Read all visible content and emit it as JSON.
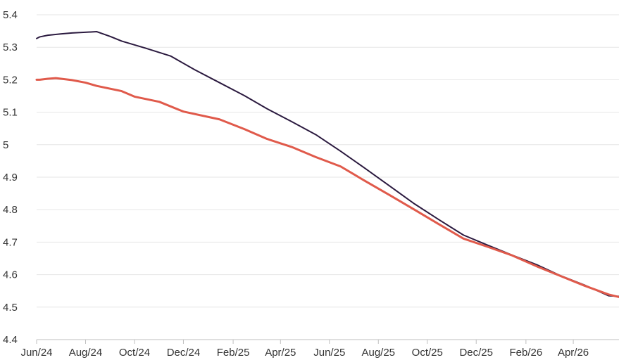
{
  "chart_data": {
    "type": "line",
    "title": "",
    "xlabel": "",
    "ylabel": "",
    "ylim": [
      4.4,
      5.4
    ],
    "yticks": [
      4.4,
      4.5,
      4.6,
      4.7,
      4.8,
      4.9,
      5,
      5.1,
      5.2,
      5.3,
      5.4
    ],
    "xlim": [
      "2024-06",
      "2026-05-28"
    ],
    "xticks": [
      {
        "date": "2024-06",
        "label": "Jun/24"
      },
      {
        "date": "2024-08",
        "label": "Aug/24"
      },
      {
        "date": "2024-10",
        "label": "Oct/24"
      },
      {
        "date": "2024-12",
        "label": "Dec/24"
      },
      {
        "date": "2025-02",
        "label": "Feb/25"
      },
      {
        "date": "2025-04",
        "label": "Apr/25"
      },
      {
        "date": "2025-06",
        "label": "Jun/25"
      },
      {
        "date": "2025-08",
        "label": "Aug/25"
      },
      {
        "date": "2025-10",
        "label": "Oct/25"
      },
      {
        "date": "2025-12",
        "label": "Dec/25"
      },
      {
        "date": "2026-02",
        "label": "Feb/26"
      },
      {
        "date": "2026-04",
        "label": "Apr/26"
      }
    ],
    "grid": true,
    "legend": "none",
    "series": [
      {
        "color": "#2b1a3f",
        "width": 2,
        "points": [
          [
            "2024-06-01",
            5.327
          ],
          [
            "2024-06-05",
            5.332
          ],
          [
            "2024-06-15",
            5.337
          ],
          [
            "2024-07-01",
            5.341
          ],
          [
            "2024-07-15",
            5.344
          ],
          [
            "2024-08-15",
            5.348
          ],
          [
            "2024-09-01",
            5.333
          ],
          [
            "2024-09-15",
            5.319
          ],
          [
            "2024-10-15",
            5.297
          ],
          [
            "2024-11-15",
            5.273
          ],
          [
            "2024-12-15",
            5.231
          ],
          [
            "2025-01-15",
            5.191
          ],
          [
            "2025-02-15",
            5.151
          ],
          [
            "2025-03-15",
            5.111
          ],
          [
            "2025-04-15",
            5.071
          ],
          [
            "2025-05-15",
            5.031
          ],
          [
            "2025-06-15",
            4.98
          ],
          [
            "2025-07-15",
            4.928
          ],
          [
            "2025-08-15",
            4.873
          ],
          [
            "2025-09-15",
            4.818
          ],
          [
            "2025-10-15",
            4.77
          ],
          [
            "2025-11-15",
            4.722
          ],
          [
            "2025-12-15",
            4.691
          ],
          [
            "2026-01-15",
            4.66
          ],
          [
            "2026-02-15",
            4.63
          ],
          [
            "2026-03-15",
            4.598
          ],
          [
            "2026-04-15",
            4.568
          ],
          [
            "2026-05-15",
            4.535
          ],
          [
            "2026-05-28",
            4.533
          ]
        ]
      },
      {
        "color": "#e05a4b",
        "width": 3,
        "points": [
          [
            "2024-06-01",
            5.2
          ],
          [
            "2024-06-05",
            5.2
          ],
          [
            "2024-06-15",
            5.203
          ],
          [
            "2024-06-25",
            5.205
          ],
          [
            "2024-07-15",
            5.199
          ],
          [
            "2024-08-01",
            5.191
          ],
          [
            "2024-08-15",
            5.181
          ],
          [
            "2024-09-15",
            5.165
          ],
          [
            "2024-10-01",
            5.148
          ],
          [
            "2024-11-01",
            5.132
          ],
          [
            "2024-12-01",
            5.102
          ],
          [
            "2025-01-15",
            5.078
          ],
          [
            "2025-02-15",
            5.048
          ],
          [
            "2025-03-15",
            5.018
          ],
          [
            "2025-04-15",
            4.993
          ],
          [
            "2025-05-15",
            4.962
          ],
          [
            "2025-06-15",
            4.933
          ],
          [
            "2025-07-15",
            4.889
          ],
          [
            "2025-08-15",
            4.845
          ],
          [
            "2025-09-15",
            4.8
          ],
          [
            "2025-10-15",
            4.756
          ],
          [
            "2025-11-15",
            4.711
          ],
          [
            "2025-12-15",
            4.686
          ],
          [
            "2026-01-15",
            4.659
          ],
          [
            "2026-02-15",
            4.625
          ],
          [
            "2026-03-15",
            4.597
          ],
          [
            "2026-04-15",
            4.566
          ],
          [
            "2026-05-15",
            4.539
          ],
          [
            "2026-05-28",
            4.531
          ]
        ]
      }
    ]
  }
}
